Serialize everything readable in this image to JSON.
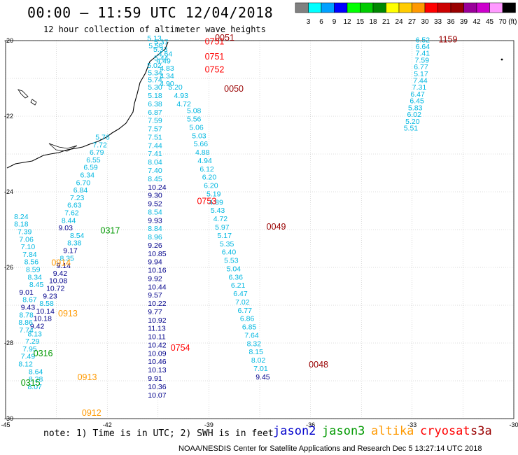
{
  "header": {
    "title": "00:00 – 11:59 UTC 12/04/2018",
    "subtitle": "12 hour collection of altimeter wave heights"
  },
  "legend": {
    "unit": "(ft)",
    "bins": [
      {
        "label": "3",
        "color": "#808080"
      },
      {
        "label": "6",
        "color": "#00ffff"
      },
      {
        "label": "9",
        "color": "#00a0ff"
      },
      {
        "label": "12",
        "color": "#0000ff"
      },
      {
        "label": "15",
        "color": "#00ff00"
      },
      {
        "label": "18",
        "color": "#00cc00"
      },
      {
        "label": "21",
        "color": "#008800"
      },
      {
        "label": "24",
        "color": "#ffff00"
      },
      {
        "label": "27",
        "color": "#ffcc00"
      },
      {
        "label": "30",
        "color": "#ff9900"
      },
      {
        "label": "33",
        "color": "#ff0000"
      },
      {
        "label": "36",
        "color": "#cc0000"
      },
      {
        "label": "39",
        "color": "#990000"
      },
      {
        "label": "42",
        "color": "#990099"
      },
      {
        "label": "45",
        "color": "#cc00cc"
      },
      {
        "label": "70",
        "color": "#ff99ff"
      },
      {
        "label": "",
        "color": "#000000"
      }
    ]
  },
  "axes": {
    "lon_labels": [
      "-45",
      "-42",
      "-39",
      "-36",
      "-33",
      "-30"
    ],
    "lat_labels": [
      "-20",
      "-22",
      "-24",
      "-26",
      "-28",
      "-30"
    ]
  },
  "colors": {
    "jason2": "#0000cc",
    "jason3": "#009900",
    "altika": "#ff9900",
    "cryosat": "#ff0000",
    "s3a": "#990000",
    "swh_light": "#00b7e0",
    "swh_dark": "#00008b",
    "grid": "#b8b8b8",
    "coast": "#000000"
  },
  "tracks": [
    {
      "time": {
        "label": "0752",
        "satellite": "cryosat",
        "lon": -39.12,
        "lat": -20.84
      },
      "times": [
        {
          "label": "0751",
          "satellite": "cryosat",
          "lon": -39.12,
          "lat": -20.1
        },
        {
          "label": "0751",
          "satellite": "cryosat",
          "lon": -39.12,
          "lat": -20.5
        },
        {
          "label": "0753",
          "satellite": "cryosat",
          "lon": -39.35,
          "lat": -24.32
        },
        {
          "label": "0754",
          "satellite": "cryosat",
          "lon": -40.13,
          "lat": -28.2
        }
      ],
      "points": [
        {
          "lon": -40.82,
          "lat": -20.0,
          "swh": "5.13"
        },
        {
          "lon": -40.62,
          "lat": -20.1,
          "swh": "5.37"
        },
        {
          "lon": -40.78,
          "lat": -20.2,
          "swh": "5.56"
        },
        {
          "lon": -40.64,
          "lat": -20.3,
          "swh": "5.33"
        },
        {
          "lon": -40.5,
          "lat": -20.42,
          "swh": "4.64"
        },
        {
          "lon": -40.62,
          "lat": -20.53,
          "swh": "5.44"
        },
        {
          "lon": -40.55,
          "lat": -20.6,
          "swh": "4.49"
        },
        {
          "lon": -40.82,
          "lat": -20.72,
          "swh": "5.02"
        },
        {
          "lon": -40.45,
          "lat": -20.8,
          "swh": "4.83"
        },
        {
          "lon": -40.8,
          "lat": -20.92,
          "swh": "5.34"
        },
        {
          "lon": -40.45,
          "lat": -21.0,
          "swh": "4.34"
        },
        {
          "lon": -40.8,
          "lat": -21.1,
          "swh": "5.74"
        },
        {
          "lon": -40.45,
          "lat": -21.2,
          "swh": "4.90"
        },
        {
          "lon": -40.8,
          "lat": -21.3,
          "swh": "5.30"
        },
        {
          "lon": -40.2,
          "lat": -21.3,
          "swh": "5.20"
        },
        {
          "lon": -40.8,
          "lat": -21.52,
          "swh": "5.18"
        },
        {
          "lon": -40.03,
          "lat": -21.52,
          "swh": "4.93"
        },
        {
          "lon": -40.8,
          "lat": -21.74,
          "swh": "6.38"
        },
        {
          "lon": -39.95,
          "lat": -21.74,
          "swh": "4.72"
        },
        {
          "lon": -40.8,
          "lat": -21.96,
          "swh": "6.87"
        },
        {
          "lon": -40.8,
          "lat": -22.18,
          "swh": "7.59"
        },
        {
          "lon": -40.8,
          "lat": -22.4,
          "swh": "7.57"
        },
        {
          "lon": -40.8,
          "lat": -22.62,
          "swh": "7.51"
        },
        {
          "lon": -40.8,
          "lat": -22.84,
          "swh": "7.44"
        },
        {
          "lon": -40.8,
          "lat": -23.06,
          "swh": "7.41"
        },
        {
          "lon": -40.8,
          "lat": -23.28,
          "swh": "8.04"
        },
        {
          "lon": -40.8,
          "lat": -23.5,
          "swh": "7.40"
        },
        {
          "lon": -40.8,
          "lat": -23.72,
          "swh": "8.45"
        },
        {
          "lon": -40.8,
          "lat": -23.94,
          "swh": "10.24"
        },
        {
          "lon": -40.8,
          "lat": -24.16,
          "swh": "9.30"
        },
        {
          "lon": -40.8,
          "lat": -24.38,
          "swh": "9.52"
        },
        {
          "lon": -40.8,
          "lat": -24.6,
          "swh": "8.54"
        },
        {
          "lon": -40.8,
          "lat": -24.82,
          "swh": "9.93"
        },
        {
          "lon": -40.8,
          "lat": -25.04,
          "swh": "8.84"
        },
        {
          "lon": -40.8,
          "lat": -25.26,
          "swh": "8.96"
        },
        {
          "lon": -40.8,
          "lat": -25.48,
          "swh": "9.26"
        },
        {
          "lon": -40.8,
          "lat": -25.7,
          "swh": "10.85"
        },
        {
          "lon": -40.8,
          "lat": -25.92,
          "swh": "9.94"
        },
        {
          "lon": -40.8,
          "lat": -26.14,
          "swh": "10.16"
        },
        {
          "lon": -40.8,
          "lat": -26.36,
          "swh": "9.92"
        },
        {
          "lon": -40.8,
          "lat": -26.58,
          "swh": "10.44"
        },
        {
          "lon": -40.8,
          "lat": -26.8,
          "swh": "9.57"
        },
        {
          "lon": -40.8,
          "lat": -27.02,
          "swh": "10.22"
        },
        {
          "lon": -40.8,
          "lat": -27.24,
          "swh": "9.77"
        },
        {
          "lon": -40.8,
          "lat": -27.46,
          "swh": "10.92"
        },
        {
          "lon": -40.8,
          "lat": -27.68,
          "swh": "11.13"
        },
        {
          "lon": -40.8,
          "lat": -27.9,
          "swh": "10.11"
        },
        {
          "lon": -40.8,
          "lat": -28.12,
          "swh": "10.42"
        },
        {
          "lon": -40.8,
          "lat": -28.34,
          "swh": "10.09"
        },
        {
          "lon": -40.8,
          "lat": -28.56,
          "swh": "10.46"
        },
        {
          "lon": -40.8,
          "lat": -28.78,
          "swh": "10.13"
        },
        {
          "lon": -40.8,
          "lat": -29.0,
          "swh": "9.91"
        },
        {
          "lon": -40.8,
          "lat": -29.22,
          "swh": "10.36"
        },
        {
          "lon": -40.8,
          "lat": -29.44,
          "swh": "10.07"
        }
      ]
    },
    {
      "time": {
        "label": "0051",
        "satellite": "s3a",
        "lon": -38.82,
        "lat": -20.0
      },
      "times": [
        {
          "label": "0050",
          "satellite": "s3a",
          "lon": -38.55,
          "lat": -21.35
        },
        {
          "label": "0049",
          "satellite": "s3a",
          "lon": -37.3,
          "lat": -25.0
        },
        {
          "label": "0048",
          "satellite": "s3a",
          "lon": -36.05,
          "lat": -28.65
        }
      ],
      "points": [
        {
          "lon": -39.65,
          "lat": -21.92,
          "swh": "5.08"
        },
        {
          "lon": -39.65,
          "lat": -22.14,
          "swh": "5.56"
        },
        {
          "lon": -39.58,
          "lat": -22.36,
          "swh": "5.06"
        },
        {
          "lon": -39.5,
          "lat": -22.58,
          "swh": "5.03"
        },
        {
          "lon": -39.45,
          "lat": -22.8,
          "swh": "5.66"
        },
        {
          "lon": -39.4,
          "lat": -23.02,
          "swh": "4.88"
        },
        {
          "lon": -39.33,
          "lat": -23.24,
          "swh": "4.94"
        },
        {
          "lon": -39.27,
          "lat": -23.46,
          "swh": "6.12"
        },
        {
          "lon": -39.2,
          "lat": -23.68,
          "swh": "6.20"
        },
        {
          "lon": -39.15,
          "lat": -23.9,
          "swh": "6.20"
        },
        {
          "lon": -39.07,
          "lat": -24.12,
          "swh": "5.19"
        },
        {
          "lon": -39.0,
          "lat": -24.34,
          "swh": "4.89"
        },
        {
          "lon": -38.95,
          "lat": -24.56,
          "swh": "5.43"
        },
        {
          "lon": -38.87,
          "lat": -24.78,
          "swh": "4.72"
        },
        {
          "lon": -38.82,
          "lat": -25.0,
          "swh": "5.97"
        },
        {
          "lon": -38.75,
          "lat": -25.22,
          "swh": "5.17"
        },
        {
          "lon": -38.68,
          "lat": -25.44,
          "swh": "5.35"
        },
        {
          "lon": -38.62,
          "lat": -25.66,
          "swh": "6.40"
        },
        {
          "lon": -38.55,
          "lat": -25.88,
          "swh": "5.53"
        },
        {
          "lon": -38.48,
          "lat": -26.1,
          "swh": "5.04"
        },
        {
          "lon": -38.42,
          "lat": -26.32,
          "swh": "6.36"
        },
        {
          "lon": -38.35,
          "lat": -26.54,
          "swh": "6.21"
        },
        {
          "lon": -38.28,
          "lat": -26.76,
          "swh": "6.47"
        },
        {
          "lon": -38.22,
          "lat": -26.98,
          "swh": "7.02"
        },
        {
          "lon": -38.15,
          "lat": -27.2,
          "swh": "6.77"
        },
        {
          "lon": -38.08,
          "lat": -27.42,
          "swh": "6.86"
        },
        {
          "lon": -38.02,
          "lat": -27.64,
          "swh": "6.85"
        },
        {
          "lon": -37.95,
          "lat": -27.86,
          "swh": "7.64"
        },
        {
          "lon": -37.88,
          "lat": -28.08,
          "swh": "8.32"
        },
        {
          "lon": -37.82,
          "lat": -28.3,
          "swh": "8.15"
        },
        {
          "lon": -37.75,
          "lat": -28.52,
          "swh": "8.02"
        },
        {
          "lon": -37.68,
          "lat": -28.74,
          "swh": "7.01"
        },
        {
          "lon": -37.62,
          "lat": -28.96,
          "swh": "9.45"
        }
      ]
    },
    {
      "time": {
        "label": "1159",
        "satellite": "s3a",
        "lon": -32.22,
        "lat": -20.05
      },
      "times": [],
      "points": [
        {
          "lon": -32.9,
          "lat": -20.05,
          "swh": "6.52"
        },
        {
          "lon": -32.9,
          "lat": -20.22,
          "swh": "6.64"
        },
        {
          "lon": -32.9,
          "lat": -20.4,
          "swh": "7.41"
        },
        {
          "lon": -32.92,
          "lat": -20.58,
          "swh": "7.59"
        },
        {
          "lon": -32.95,
          "lat": -20.76,
          "swh": "6.77"
        },
        {
          "lon": -32.95,
          "lat": -20.94,
          "swh": "5.17"
        },
        {
          "lon": -32.97,
          "lat": -21.12,
          "swh": "7.44"
        },
        {
          "lon": -33.0,
          "lat": -21.3,
          "swh": "7.31"
        },
        {
          "lon": -33.05,
          "lat": -21.48,
          "swh": "6.47"
        },
        {
          "lon": -33.07,
          "lat": -21.66,
          "swh": "6.45"
        },
        {
          "lon": -33.12,
          "lat": -21.84,
          "swh": "5.83"
        },
        {
          "lon": -33.15,
          "lat": -22.02,
          "swh": "6.02"
        },
        {
          "lon": -33.2,
          "lat": -22.2,
          "swh": "5.20"
        },
        {
          "lon": -33.25,
          "lat": -22.38,
          "swh": "5.51"
        }
      ]
    },
    {
      "time": {
        "label": "0317",
        "satellite": "jason3",
        "lon": -42.2,
        "lat": -25.1
      },
      "times": [
        {
          "label": "0316",
          "satellite": "jason3",
          "lon": -44.18,
          "lat": -28.35
        },
        {
          "label": "0315",
          "satellite": "jason3",
          "lon": -44.55,
          "lat": -29.13
        }
      ],
      "points": [
        {
          "lon": -42.35,
          "lat": -22.62,
          "swh": "5.76"
        },
        {
          "lon": -42.43,
          "lat": -22.82,
          "swh": "7.72"
        },
        {
          "lon": -42.52,
          "lat": -23.02,
          "swh": "6.79"
        },
        {
          "lon": -42.62,
          "lat": -23.22,
          "swh": "6.55"
        },
        {
          "lon": -42.7,
          "lat": -23.42,
          "swh": "6.59"
        },
        {
          "lon": -42.8,
          "lat": -23.62,
          "swh": "6.34"
        },
        {
          "lon": -42.92,
          "lat": -23.82,
          "swh": "6.70"
        },
        {
          "lon": -43.0,
          "lat": -24.02,
          "swh": "6.84"
        },
        {
          "lon": -43.1,
          "lat": -24.22,
          "swh": "7.23"
        },
        {
          "lon": -43.18,
          "lat": -24.42,
          "swh": "6.63"
        },
        {
          "lon": -43.26,
          "lat": -24.62,
          "swh": "7.62"
        },
        {
          "lon": -43.35,
          "lat": -24.82,
          "swh": "8.44"
        },
        {
          "lon": -43.44,
          "lat": -25.02,
          "swh": "9.03"
        },
        {
          "lon": -43.1,
          "lat": -25.22,
          "swh": "8.54"
        },
        {
          "lon": -43.18,
          "lat": -25.42,
          "swh": "8.38"
        },
        {
          "lon": -43.3,
          "lat": -25.62,
          "swh": "9.17"
        },
        {
          "lon": -43.4,
          "lat": -25.82,
          "swh": "8.35"
        },
        {
          "lon": -43.5,
          "lat": -26.02,
          "swh": "9.14"
        },
        {
          "lon": -43.6,
          "lat": -26.22,
          "swh": "9.42"
        },
        {
          "lon": -43.72,
          "lat": -26.42,
          "swh": "10.08"
        },
        {
          "lon": -43.8,
          "lat": -26.62,
          "swh": "10.72"
        },
        {
          "lon": -43.9,
          "lat": -26.82,
          "swh": "9.23"
        },
        {
          "lon": -44.0,
          "lat": -27.02,
          "swh": "8.58"
        },
        {
          "lon": -44.1,
          "lat": -27.22,
          "swh": "10.14"
        },
        {
          "lon": -44.18,
          "lat": -27.42,
          "swh": "10.18"
        },
        {
          "lon": -44.28,
          "lat": -27.62,
          "swh": "9.42"
        },
        {
          "lon": -44.35,
          "lat": -27.82,
          "swh": "8.13"
        },
        {
          "lon": -44.42,
          "lat": -28.02,
          "swh": "7.29"
        },
        {
          "lon": -44.5,
          "lat": -28.22,
          "swh": "7.95"
        },
        {
          "lon": -44.55,
          "lat": -28.42,
          "swh": "7.49"
        },
        {
          "lon": -44.62,
          "lat": -28.62,
          "swh": "8.12"
        },
        {
          "lon": -44.32,
          "lat": -28.82,
          "swh": "8.64"
        },
        {
          "lon": -44.32,
          "lat": -29.02,
          "swh": "8.28"
        },
        {
          "lon": -44.35,
          "lat": -29.22,
          "swh": "8.07"
        }
      ]
    },
    {
      "time": {
        "label": "0914",
        "satellite": "altika",
        "lon": -43.65,
        "lat": -25.95
      },
      "times": [
        {
          "label": "0913",
          "satellite": "altika",
          "lon": -43.45,
          "lat": -27.3
        },
        {
          "label": "0913",
          "satellite": "altika",
          "lon": -42.88,
          "lat": -28.98
        },
        {
          "label": "0912",
          "satellite": "altika",
          "lon": -42.75,
          "lat": -29.93
        }
      ],
      "points": [
        {
          "lon": -44.75,
          "lat": -24.72,
          "swh": "8.24"
        },
        {
          "lon": -44.75,
          "lat": -24.92,
          "swh": "8.18"
        },
        {
          "lon": -44.65,
          "lat": -25.12,
          "swh": "7.39"
        },
        {
          "lon": -44.6,
          "lat": -25.32,
          "swh": "7.06"
        },
        {
          "lon": -44.55,
          "lat": -25.52,
          "swh": "7.10"
        },
        {
          "lon": -44.5,
          "lat": -25.72,
          "swh": "7.84"
        },
        {
          "lon": -44.45,
          "lat": -25.92,
          "swh": "8.56"
        },
        {
          "lon": -44.4,
          "lat": -26.12,
          "swh": "8.59"
        },
        {
          "lon": -44.35,
          "lat": -26.32,
          "swh": "8.34"
        },
        {
          "lon": -44.3,
          "lat": -26.52,
          "swh": "8.45"
        },
        {
          "lon": -44.6,
          "lat": -26.72,
          "swh": "9.01"
        },
        {
          "lon": -44.5,
          "lat": -26.92,
          "swh": "8.67"
        },
        {
          "lon": -44.55,
          "lat": -27.12,
          "swh": "9.43"
        },
        {
          "lon": -44.6,
          "lat": -27.32,
          "swh": "8.78"
        },
        {
          "lon": -44.62,
          "lat": -27.52,
          "swh": "8.86"
        },
        {
          "lon": -44.6,
          "lat": -27.72,
          "swh": "7.74"
        }
      ]
    }
  ],
  "annotations": {
    "note": "note: 1) Time is in UTC; 2) SWH is in feet",
    "sat_labels": [
      {
        "key": "jason2",
        "text": "jason2"
      },
      {
        "key": "jason3",
        "text": "jason3"
      },
      {
        "key": "altika",
        "text": "altika"
      },
      {
        "key": "cryosat",
        "text": "cryosat"
      },
      {
        "key": "s3a",
        "text": "s3a"
      }
    ],
    "footer": "NOAA/NESDIS Center for Satellite Applications and Research    Dec  5 13:27:14 UTC 2018"
  }
}
